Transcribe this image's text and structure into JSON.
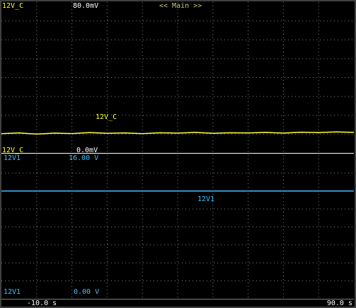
{
  "chart_data": [
    {
      "type": "line",
      "title": "<< Main >>",
      "x": [
        -10,
        -5,
        0,
        5,
        10,
        15,
        20,
        25,
        30,
        35,
        40,
        45,
        50,
        55,
        60,
        65,
        70,
        75,
        80,
        85,
        90
      ],
      "series": [
        {
          "name": "12V_C",
          "color": "#ffff40",
          "values": [
            10.2,
            10.6,
            10.0,
            10.5,
            10.3,
            10.8,
            10.4,
            10.6,
            10.2,
            10.7,
            10.5,
            10.9,
            10.4,
            10.7,
            10.6,
            10.9,
            10.5,
            11.0,
            10.8,
            11.2,
            10.9
          ]
        }
      ],
      "ylim": [
        0,
        80
      ],
      "yticks": [
        {
          "value": 0,
          "label": "0.0mV"
        },
        {
          "value": 80,
          "label": "80.0mV"
        }
      ],
      "xlim": [
        -10,
        90
      ],
      "grid": true
    },
    {
      "type": "line",
      "x": [
        -10,
        90
      ],
      "series": [
        {
          "name": "12V1",
          "color": "#40c0ff",
          "values": [
            12,
            12
          ]
        }
      ],
      "ylim": [
        0,
        16
      ],
      "yticks": [
        {
          "value": 0,
          "label": "0.00 V"
        },
        {
          "value": 16,
          "label": "16.00 V"
        }
      ],
      "xlim": [
        -10,
        90
      ],
      "xticks": [
        {
          "value": -10,
          "label": "-10.0 s"
        },
        {
          "value": 90,
          "label": "90.0 s"
        }
      ],
      "grid": true
    }
  ]
}
